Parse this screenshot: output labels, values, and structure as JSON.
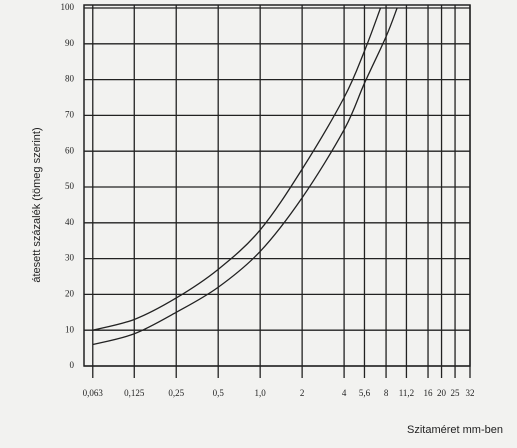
{
  "chart_data": {
    "type": "line",
    "xlabel": "Szitaméret mm-ben",
    "ylabel": "átesett százalék (tömeg szerint)",
    "xscale": "log",
    "xlim": [
      0.0545,
      32
    ],
    "ylim": [
      0,
      100
    ],
    "xticks": [
      {
        "value": 0.063,
        "label": "0,063"
      },
      {
        "value": 0.125,
        "label": "0,125"
      },
      {
        "value": 0.25,
        "label": "0,25"
      },
      {
        "value": 0.5,
        "label": "0,5"
      },
      {
        "value": 1,
        "label": "1,0"
      },
      2,
      4,
      {
        "value": 5.6,
        "label": "5,6"
      },
      8,
      {
        "value": 11.2,
        "label": "11,2"
      },
      16,
      20,
      25,
      32
    ],
    "yticks": [
      0,
      10,
      20,
      30,
      40,
      50,
      60,
      70,
      80,
      90,
      100
    ],
    "grid": true,
    "series": [
      {
        "color": "#222222",
        "x": [
          0.063,
          0.125,
          0.25,
          0.5,
          1,
          2,
          4,
          5.6,
          7.3
        ],
        "values": [
          10,
          13,
          19,
          27,
          38,
          55,
          75,
          88,
          100
        ]
      },
      {
        "color": "#222222",
        "x": [
          0.063,
          0.125,
          0.25,
          0.5,
          1,
          2,
          4,
          5.6,
          8,
          9.6
        ],
        "values": [
          6,
          9,
          15,
          22,
          32,
          47,
          66,
          79,
          92,
          100
        ]
      }
    ]
  }
}
